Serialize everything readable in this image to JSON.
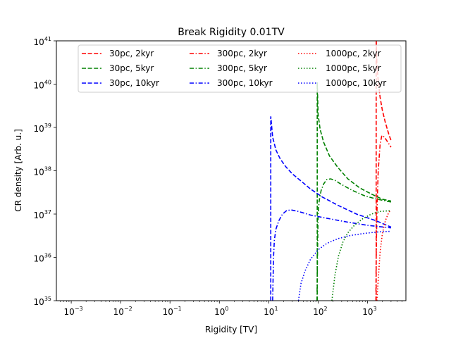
{
  "chart_data": {
    "type": "line",
    "title": "Break Rigidity 0.01TV",
    "xlabel": "Rigidity [TV]",
    "ylabel": "CR density [Arb. u.]",
    "xscale": "log",
    "yscale": "log",
    "xlim": [
      0.0005,
      6000
    ],
    "ylim": [
      1e+35,
      1e+41
    ],
    "grid": false,
    "legend": {
      "placement": "top-center",
      "columns": 3
    },
    "x_ticks": [
      {
        "base": "10",
        "exp": "−3",
        "value": 0.001
      },
      {
        "base": "10",
        "exp": "−2",
        "value": 0.01
      },
      {
        "base": "10",
        "exp": "−1",
        "value": 0.1
      },
      {
        "base": "10",
        "exp": "0",
        "value": 1
      },
      {
        "base": "10",
        "exp": "1",
        "value": 10
      },
      {
        "base": "10",
        "exp": "2",
        "value": 100
      },
      {
        "base": "10",
        "exp": "3",
        "value": 1000
      }
    ],
    "y_ticks": [
      {
        "base": "10",
        "exp": "35",
        "value": 1e+35
      },
      {
        "base": "10",
        "exp": "36",
        "value": 1e+36
      },
      {
        "base": "10",
        "exp": "37",
        "value": 1e+37
      },
      {
        "base": "10",
        "exp": "38",
        "value": 1e+38
      },
      {
        "base": "10",
        "exp": "39",
        "value": 1e+39
      },
      {
        "base": "10",
        "exp": "40",
        "value": 1e+40
      },
      {
        "base": "10",
        "exp": "41",
        "value": 1e+41
      }
    ],
    "series": [
      {
        "name": "30pc, 2kyr",
        "color": "#ff0000",
        "style": "dashed",
        "x": [
          1500,
          1500,
          1550,
          1650,
          1800,
          2000,
          2300,
          2700,
          3000
        ],
        "y": [
          1e+35,
          1.2e+41,
          3e+40,
          1.2e+40,
          5e+39,
          2.5e+39,
          1.3e+39,
          7e+38,
          5e+38
        ]
      },
      {
        "name": "30pc, 5kyr",
        "color": "#008000",
        "style": "dashed",
        "x": [
          96,
          96,
          100,
          110,
          130,
          170,
          250,
          400,
          700,
          1200,
          2000,
          3000
        ],
        "y": [
          1e+35,
          1.1e+40,
          2e+39,
          9e+38,
          4.5e+38,
          2.2e+38,
          1.2e+38,
          6.5e+37,
          4e+37,
          2.9e+37,
          2.2e+37,
          2e+37
        ]
      },
      {
        "name": "30pc, 10kyr",
        "color": "#0000ff",
        "style": "dashed",
        "x": [
          11,
          11,
          12,
          14,
          17,
          22,
          30,
          45,
          70,
          120,
          250,
          600,
          1500,
          3000
        ],
        "y": [
          1e+35,
          1.8e+39,
          6e+38,
          3e+38,
          1.9e+38,
          1.25e+38,
          8.5e+37,
          5.8e+37,
          3.8e+37,
          2.5e+37,
          1.6e+37,
          1e+37,
          7e+36,
          5e+36
        ]
      },
      {
        "name": "300pc, 2kyr",
        "color": "#ff0000",
        "style": "dashdot",
        "x": [
          1480,
          1500,
          1550,
          1650,
          1800,
          1950,
          2200,
          2600,
          3000
        ],
        "y": [
          1e+35,
          1e+36,
          1e+37,
          1e+38,
          4e+38,
          6.5e+38,
          6e+38,
          4.5e+38,
          3.5e+38
        ]
      },
      {
        "name": "300pc, 5kyr",
        "color": "#008000",
        "style": "dashdot",
        "x": [
          95,
          97,
          100,
          105,
          115,
          130,
          150,
          180,
          220,
          300,
          500,
          900,
          1600,
          3000
        ],
        "y": [
          1e+35,
          1e+36,
          1e+37,
          2e+37,
          3.5e+37,
          5e+37,
          6.3e+37,
          6.5e+37,
          6e+37,
          4.8e+37,
          3.5e+37,
          2.6e+37,
          2.2e+37,
          1.9e+37
        ]
      },
      {
        "name": "300pc, 10kyr",
        "color": "#0000ff",
        "style": "dashdot",
        "x": [
          12,
          12.5,
          13,
          14,
          16,
          19,
          23,
          28,
          40,
          70,
          150,
          400,
          1000,
          3000
        ],
        "y": [
          1e+35,
          1e+36,
          2.5e+36,
          4.5e+36,
          7e+36,
          1e+37,
          1.2e+37,
          1.25e+37,
          1.15e+37,
          9.5e+36,
          8e+36,
          6.5e+36,
          5.5e+36,
          4.8e+36
        ]
      },
      {
        "name": "1000pc, 2kyr",
        "color": "#ff0000",
        "style": "dotted",
        "x": [
          1550,
          1650,
          1800,
          2000,
          2300,
          2700,
          3000
        ],
        "y": [
          1e+35,
          3e+35,
          1.3e+36,
          3.5e+36,
          7e+36,
          1.1e+37,
          1.25e+37
        ]
      },
      {
        "name": "1000pc, 5kyr",
        "color": "#008000",
        "style": "dotted",
        "x": [
          190,
          220,
          260,
          320,
          400,
          550,
          800,
          1200,
          1800,
          3000
        ],
        "y": [
          1e+35,
          4e+35,
          1.1e+36,
          2.3e+36,
          3.7e+36,
          5.6e+36,
          7.8e+36,
          1e+37,
          1.15e+37,
          1.2e+37
        ]
      },
      {
        "name": "1000pc, 10kyr",
        "color": "#0000ff",
        "style": "dotted",
        "x": [
          40,
          45,
          55,
          70,
          100,
          150,
          250,
          450,
          900,
          1800,
          3000
        ],
        "y": [
          1e+35,
          2.5e+35,
          5e+35,
          9e+35,
          1.5e+36,
          2.1e+36,
          2.7e+36,
          3.2e+36,
          3.6e+36,
          3.9e+36,
          4e+36
        ]
      }
    ]
  }
}
